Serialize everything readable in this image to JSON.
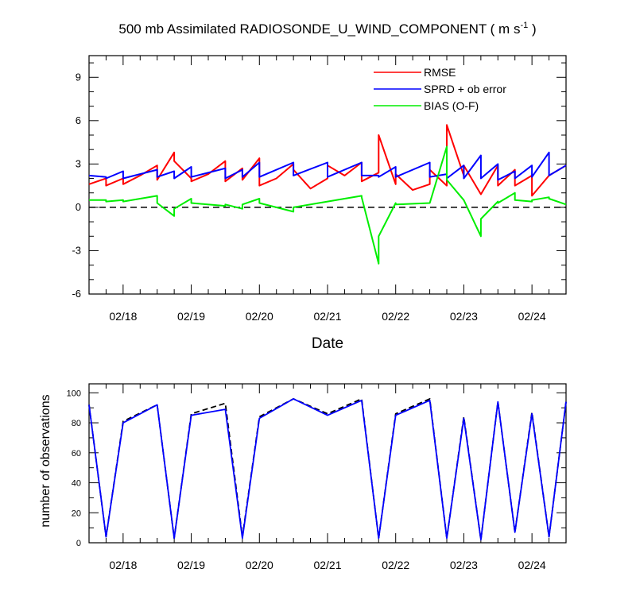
{
  "figure": {
    "title_main": "500 mb Assimilated RADIOSONDE_U_WIND_COMPONENT ( m s",
    "title_sup": "-1",
    "title_end": " )"
  },
  "chart_data": [
    {
      "type": "line",
      "xlabel": "Date",
      "ylabel": "",
      "ylim": [
        -6,
        10.5
      ],
      "yticks": [
        -6,
        -3,
        0,
        3,
        6,
        9
      ],
      "xlim": [
        0,
        7.0
      ],
      "xticks": [
        0.5,
        1.5,
        2.5,
        3.5,
        4.5,
        5.5,
        6.5
      ],
      "xticklabels": [
        "02/18",
        "02/19",
        "02/20",
        "02/21",
        "02/22",
        "02/23",
        "02/24"
      ],
      "zero_line": "dashed",
      "legend": {
        "placement": "top-right",
        "entries": [
          "RMSE",
          "SPRD + ob error",
          "BIAS (O-F)"
        ]
      },
      "series": [
        {
          "name": "RMSE",
          "color": "#ff0000",
          "x": [
            0,
            0.25,
            0.25,
            0.5,
            0.5,
            0.75,
            1.0,
            1.0,
            1.25,
            1.25,
            1.5,
            1.5,
            1.75,
            2.0,
            2.0,
            2.25,
            2.25,
            2.5,
            2.5,
            2.75,
            3.0,
            3.0,
            3.25,
            3.5,
            3.5,
            3.75,
            4.0,
            4.0,
            4.25,
            4.25,
            4.5,
            4.5,
            4.75,
            5.0,
            5.0,
            5.25,
            5.25,
            5.5,
            5.5,
            5.75,
            6.0,
            6.0,
            6.25,
            6.25,
            6.5,
            6.5,
            6.75,
            7.0
          ],
          "y": [
            1.6,
            2.0,
            1.5,
            2.0,
            1.6,
            2.2,
            2.9,
            1.9,
            3.8,
            3.2,
            2.0,
            1.8,
            2.3,
            3.2,
            1.8,
            2.7,
            1.9,
            3.4,
            1.5,
            2.0,
            3.0,
            2.6,
            1.3,
            2.0,
            2.9,
            2.2,
            3.1,
            1.8,
            2.4,
            5.0,
            1.6,
            2.3,
            1.2,
            1.6,
            2.6,
            1.5,
            5.7,
            2.2,
            2.9,
            0.9,
            2.9,
            1.5,
            2.6,
            1.5,
            2.2,
            0.8,
            2.2,
            2.9
          ]
        },
        {
          "name": "SPRD + ob error",
          "color": "#0000ff",
          "x": [
            0,
            0.25,
            0.25,
            0.5,
            0.5,
            1.0,
            1.0,
            1.25,
            1.25,
            1.5,
            1.5,
            2.0,
            2.0,
            2.25,
            2.25,
            2.5,
            2.5,
            3.0,
            3.0,
            3.5,
            3.5,
            4.0,
            4.0,
            4.25,
            4.25,
            4.5,
            4.5,
            5.0,
            5.0,
            5.25,
            5.25,
            5.5,
            5.5,
            5.75,
            5.75,
            6.0,
            6.0,
            6.25,
            6.25,
            6.5,
            6.5,
            6.75,
            6.75,
            7.0
          ],
          "y": [
            2.2,
            2.1,
            2.0,
            2.5,
            2.0,
            2.6,
            2.1,
            2.5,
            2.0,
            2.8,
            2.1,
            2.7,
            2.0,
            2.6,
            2.1,
            3.1,
            2.1,
            3.1,
            2.2,
            3.1,
            2.1,
            3.1,
            2.2,
            2.2,
            2.1,
            2.8,
            2.1,
            3.1,
            2.1,
            2.3,
            2.0,
            2.9,
            2.0,
            3.6,
            2.0,
            3.0,
            1.9,
            2.5,
            2.0,
            2.9,
            2.1,
            3.8,
            2.2,
            2.9
          ]
        },
        {
          "name": "BIAS (O-F)",
          "color": "#00ee00",
          "x": [
            0,
            0.25,
            0.25,
            0.5,
            0.5,
            1.0,
            1.0,
            1.25,
            1.25,
            1.5,
            1.5,
            2.0,
            2.0,
            2.25,
            2.25,
            2.5,
            2.5,
            3.0,
            3.0,
            3.5,
            3.5,
            4.0,
            4.0,
            4.25,
            4.25,
            4.5,
            4.5,
            5.0,
            5.0,
            5.25,
            5.25,
            5.5,
            5.5,
            5.75,
            5.75,
            6.0,
            6.0,
            6.25,
            6.25,
            6.5,
            6.5,
            6.75,
            6.75,
            7.0
          ],
          "y": [
            0.5,
            0.5,
            0.4,
            0.5,
            0.4,
            0.8,
            0.3,
            -0.6,
            -0.1,
            0.6,
            0.3,
            0.1,
            0.2,
            -0.1,
            0.2,
            0.6,
            0.3,
            -0.3,
            0.0,
            0.4,
            0.4,
            0.8,
            0.7,
            -3.9,
            -2.0,
            0.3,
            0.2,
            0.3,
            0.3,
            4.2,
            1.9,
            0.5,
            0.5,
            -2.0,
            -0.8,
            0.4,
            0.3,
            1.0,
            0.5,
            0.4,
            0.5,
            0.7,
            0.6,
            0.2
          ]
        }
      ]
    },
    {
      "type": "line",
      "xlabel": "",
      "ylabel": "number of observations",
      "ylim": [
        0,
        106
      ],
      "yticks": [
        0,
        20,
        40,
        60,
        80,
        100
      ],
      "xlim": [
        0,
        7.0
      ],
      "xticks": [
        0.5,
        1.5,
        2.5,
        3.5,
        4.5,
        5.5,
        6.5
      ],
      "xticklabels": [
        "02/18",
        "02/19",
        "02/20",
        "02/21",
        "02/22",
        "02/23",
        "02/24"
      ],
      "series": [
        {
          "style": "dashed",
          "color": "#000000",
          "x": [
            0,
            0.25,
            0.5,
            1.0,
            1.25,
            1.5,
            2.0,
            2.25,
            2.5,
            3.0,
            3.5,
            4.0,
            4.25,
            4.5,
            5.0,
            5.25,
            5.5,
            5.75,
            6.0,
            6.25,
            6.5,
            6.75,
            7.0
          ],
          "y": [
            92,
            4,
            81,
            92,
            3,
            86,
            93,
            4,
            84,
            96,
            86,
            96,
            3,
            86,
            96,
            3,
            84,
            2,
            94,
            7,
            87,
            4,
            94
          ]
        },
        {
          "color": "#0000ff",
          "x": [
            0,
            0.25,
            0.5,
            1.0,
            1.25,
            1.5,
            2.0,
            2.25,
            2.5,
            3.0,
            3.5,
            4.0,
            4.25,
            4.5,
            5.0,
            5.25,
            5.5,
            5.75,
            6.0,
            6.25,
            6.5,
            6.75,
            7.0
          ],
          "y": [
            92,
            4,
            80,
            92,
            3,
            85,
            89,
            3,
            83,
            96,
            85,
            95,
            3,
            85,
            95,
            3,
            83,
            2,
            94,
            7,
            86,
            4,
            94
          ]
        }
      ]
    }
  ]
}
